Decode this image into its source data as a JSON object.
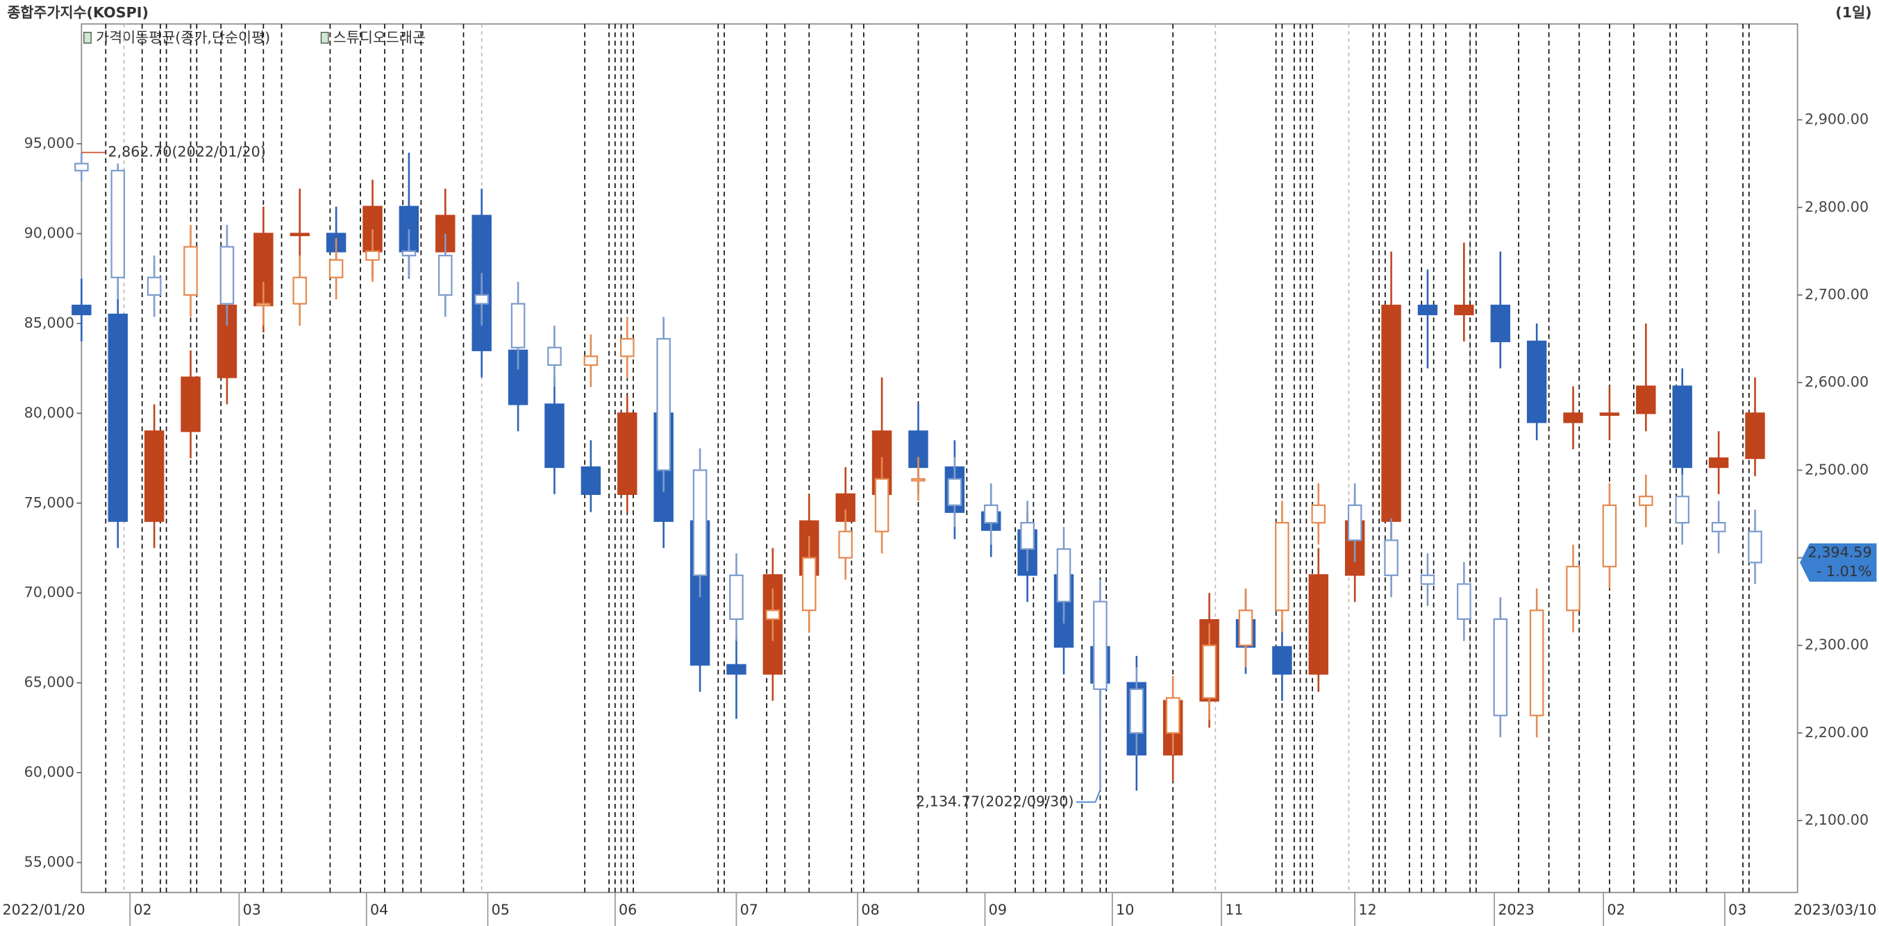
{
  "chart_data": {
    "type": "candlestick",
    "title": "종합주가지수(KOSPI)",
    "period": "(1일)",
    "indicators": [
      "가격이동평균(종가,단순이평)"
    ],
    "x_start_label": "2022/01/20",
    "x_end_label": "2023/03/10",
    "xlim": [
      0,
      283
    ],
    "xticks": [
      {
        "value": 8,
        "label": "02"
      },
      {
        "value": 26,
        "label": "03"
      },
      {
        "value": 47,
        "label": "04"
      },
      {
        "value": 67,
        "label": "05"
      },
      {
        "value": 88,
        "label": "06"
      },
      {
        "value": 108,
        "label": "07"
      },
      {
        "value": 128,
        "label": "08"
      },
      {
        "value": 149,
        "label": "09"
      },
      {
        "value": 170,
        "label": "10"
      },
      {
        "value": 188,
        "label": "11"
      },
      {
        "value": 210,
        "label": "12"
      },
      {
        "value": 233,
        "label": "2023"
      },
      {
        "value": 251,
        "label": "02"
      },
      {
        "value": 271,
        "label": "03"
      }
    ],
    "ylim": [
      53333,
      100333
    ],
    "yticks": [
      {
        "value": 55000,
        "label": "55,000"
      },
      {
        "value": 60000,
        "label": "60,000"
      },
      {
        "value": 65000,
        "label": "65,000"
      },
      {
        "value": 70000,
        "label": "70,000"
      },
      {
        "value": 75000,
        "label": "75,000"
      },
      {
        "value": 80000,
        "label": "80,000"
      },
      {
        "value": 85000,
        "label": "85,000"
      },
      {
        "value": 90000,
        "label": "90,000"
      },
      {
        "value": 95000,
        "label": "95,000"
      }
    ],
    "y2lim": [
      2017.95,
      2982.05
    ],
    "y2ticks": [
      {
        "value": 2100,
        "label": "2,100.00"
      },
      {
        "value": 2200,
        "label": "2,200.00"
      },
      {
        "value": 2300,
        "label": "2,300.00"
      },
      {
        "value": 2400,
        "label": "2,400.00"
      },
      {
        "value": 2500,
        "label": "2,500.00"
      },
      {
        "value": 2600,
        "label": "2,600.00"
      },
      {
        "value": 2700,
        "label": "2,700.00"
      },
      {
        "value": 2800,
        "label": "2,800.00"
      },
      {
        "value": 2900,
        "label": "2,900.00"
      }
    ],
    "event_lines": [
      4,
      10,
      13,
      14,
      18,
      19,
      23,
      27,
      30,
      33,
      41,
      46,
      50,
      53,
      56,
      63,
      83,
      87,
      88,
      89,
      90,
      91,
      105,
      106,
      113,
      116,
      120,
      127,
      129,
      138,
      146,
      154,
      157,
      159,
      162,
      165,
      168,
      169,
      180,
      197,
      198,
      200,
      201,
      202,
      203,
      213,
      214,
      215,
      219,
      221,
      223,
      225,
      229,
      230,
      237,
      242,
      247,
      252,
      256,
      262,
      263,
      268,
      274,
      275
    ],
    "event_lines_light": [
      7,
      66,
      187,
      209,
      229
    ],
    "x": [
      0,
      6,
      12,
      18,
      24,
      30,
      36,
      42,
      48,
      54,
      60,
      66,
      72,
      78,
      84,
      90,
      96,
      102,
      108,
      114,
      120,
      126,
      132,
      138,
      144,
      150,
      156,
      162,
      168,
      174,
      180,
      186,
      192,
      198,
      204,
      210,
      216,
      222,
      228,
      234,
      240,
      246,
      252,
      258,
      264,
      270,
      276
    ],
    "series": [
      {
        "name": "스튜디오드래곤",
        "axis": "y",
        "hollow": false,
        "color_up": "#c0441c",
        "color_down": "#2b62b8",
        "open": [
          86000,
          85500,
          74000,
          79000,
          82000,
          86000,
          90000,
          90000,
          89000,
          91500,
          89000,
          91000,
          83500,
          80500,
          77000,
          75500,
          80000,
          74000,
          66000,
          65500,
          71000,
          74000,
          75500,
          79000,
          77000,
          74500,
          73500,
          71000,
          67000,
          65000,
          61000,
          64000,
          68500,
          67000,
          65500,
          71000,
          74000,
          86000,
          85500,
          86000,
          84000,
          79500,
          80000,
          80000,
          81500,
          77000,
          77500
        ],
        "high": [
          87500,
          87000,
          80500,
          83500,
          87500,
          91500,
          92500,
          91500,
          93000,
          94500,
          92500,
          92500,
          85000,
          82000,
          78500,
          81000,
          81000,
          75500,
          67500,
          72500,
          75500,
          77000,
          82000,
          80500,
          78500,
          76000,
          74500,
          72000,
          68500,
          66500,
          65000,
          70000,
          70000,
          68500,
          72500,
          75500,
          89000,
          88000,
          89500,
          89000,
          85000,
          81500,
          81500,
          85000,
          82500,
          79000,
          82000
        ],
        "low": [
          84000,
          72500,
          72500,
          77500,
          80500,
          84500,
          88500,
          87500,
          87500,
          87500,
          87500,
          82000,
          79000,
          75500,
          74500,
          74500,
          72500,
          64500,
          63000,
          64000,
          69500,
          72500,
          74500,
          75500,
          73000,
          72000,
          69500,
          65500,
          63000,
          59000,
          59500,
          62500,
          65500,
          64000,
          64500,
          69500,
          73000,
          82500,
          84000,
          82500,
          78500,
          78000,
          78500,
          79000,
          75500,
          75500,
          76500
        ],
        "close": [
          85500,
          74000,
          79000,
          82000,
          86000,
          90000,
          90000,
          89000,
          91500,
          89000,
          91000,
          83500,
          80500,
          77000,
          75500,
          80000,
          74000,
          66000,
          65500,
          71000,
          74000,
          75500,
          79000,
          77000,
          74500,
          73500,
          71000,
          67000,
          65000,
          61000,
          64000,
          68500,
          67000,
          65500,
          71000,
          74000,
          86000,
          85500,
          86000,
          84000,
          79500,
          80000,
          80000,
          81500,
          77000,
          77500,
          80000
        ]
      },
      {
        "axis": "y2",
        "hollow": true,
        "color_up": "#e58a50",
        "color_down": "#7d9ccc",
        "open": [
          2850,
          2842,
          2720,
          2700,
          2755,
          2690,
          2690,
          2720,
          2740,
          2750,
          2745,
          2700,
          2690,
          2640,
          2620,
          2630,
          2650,
          2500,
          2380,
          2330,
          2340,
          2400,
          2430,
          2490,
          2490,
          2460,
          2440,
          2410,
          2350,
          2250,
          2200,
          2240,
          2300,
          2340,
          2440,
          2460,
          2420,
          2380,
          2370,
          2330,
          2220,
          2340,
          2390,
          2460,
          2470,
          2440,
          2430
        ],
        "high": [
          2862.7,
          2850,
          2745,
          2780,
          2780,
          2715,
          2745,
          2765,
          2775,
          2775,
          2770,
          2725,
          2715,
          2665,
          2655,
          2675,
          2675,
          2525,
          2405,
          2365,
          2425,
          2455,
          2515,
          2515,
          2515,
          2485,
          2465,
          2435,
          2375,
          2275,
          2265,
          2325,
          2365,
          2465,
          2485,
          2485,
          2445,
          2405,
          2395,
          2355,
          2365,
          2415,
          2485,
          2495,
          2495,
          2465,
          2455
        ],
        "low": [
          2830,
          2695,
          2675,
          2675,
          2665,
          2665,
          2665,
          2695,
          2715,
          2720,
          2675,
          2665,
          2615,
          2595,
          2595,
          2605,
          2475,
          2355,
          2305,
          2305,
          2315,
          2375,
          2405,
          2465,
          2435,
          2415,
          2385,
          2325,
          2134.77,
          2175,
          2175,
          2215,
          2275,
          2315,
          2415,
          2395,
          2355,
          2345,
          2305,
          2195,
          2195,
          2315,
          2365,
          2435,
          2415,
          2405,
          2370
        ],
        "close": [
          2842,
          2720,
          2700,
          2755,
          2690,
          2690,
          2720,
          2740,
          2750,
          2745,
          2700,
          2690,
          2640,
          2620,
          2630,
          2650,
          2500,
          2380,
          2330,
          2340,
          2400,
          2430,
          2490,
          2490,
          2460,
          2440,
          2410,
          2350,
          2250,
          2200,
          2240,
          2300,
          2340,
          2440,
          2460,
          2420,
          2380,
          2370,
          2330,
          2220,
          2340,
          2390,
          2460,
          2470,
          2440,
          2430,
          2394.59
        ]
      }
    ],
    "annotations": [
      {
        "text": "2,862.70(2022/01/20)",
        "color": "#d0502a"
      },
      {
        "text": "2,134.77(2022/09/30)",
        "color": "#3a7fd0"
      }
    ],
    "last_label": "2,394.59",
    "change_label": "- 1.01%",
    "last_color": "#3a7fd0"
  }
}
